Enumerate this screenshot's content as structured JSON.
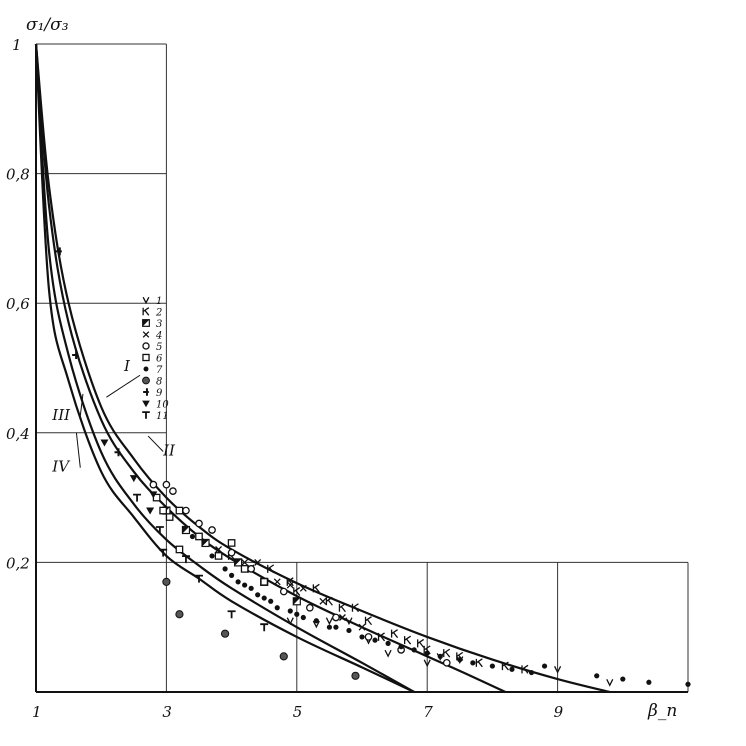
{
  "chart_data": {
    "type": "scatter",
    "title": "",
    "xlabel": "β_п",
    "ylabel": "σ₁/σ₃",
    "xlim": [
      1,
      11
    ],
    "ylim": [
      0,
      1
    ],
    "x_ticks": [
      {
        "value": 1,
        "label": "1"
      },
      {
        "value": 3,
        "label": "3"
      },
      {
        "value": 5,
        "label": "5"
      },
      {
        "value": 7,
        "label": "7"
      },
      {
        "value": 9,
        "label": "9"
      }
    ],
    "y_ticks": [
      {
        "value": 0.2,
        "label": "0,2"
      },
      {
        "value": 0.4,
        "label": "0,4"
      },
      {
        "value": 0.6,
        "label": "0,6"
      },
      {
        "value": 0.8,
        "label": "0,8"
      },
      {
        "value": 1.0,
        "label": "1"
      }
    ],
    "grid": true,
    "curves": [
      {
        "name": "I",
        "x": [
          1.0,
          1.2,
          1.5,
          2.0,
          2.5,
          3.0,
          3.5,
          4.0,
          5.0,
          6.0,
          7.0,
          8.0,
          9.0,
          9.8
        ],
        "y": [
          1.0,
          0.78,
          0.6,
          0.44,
          0.36,
          0.3,
          0.255,
          0.22,
          0.168,
          0.125,
          0.085,
          0.05,
          0.02,
          0.0
        ]
      },
      {
        "name": "II",
        "x": [
          1.0,
          1.2,
          1.5,
          2.0,
          2.5,
          3.0,
          3.5,
          4.0,
          5.0,
          6.0,
          7.0,
          7.6,
          8.2
        ],
        "y": [
          1.0,
          0.75,
          0.57,
          0.42,
          0.34,
          0.285,
          0.24,
          0.205,
          0.148,
          0.1,
          0.055,
          0.028,
          0.0
        ]
      },
      {
        "name": "III",
        "x": [
          1.0,
          1.2,
          1.5,
          2.0,
          2.5,
          3.0,
          3.5,
          4.0,
          5.0,
          6.0,
          6.8
        ],
        "y": [
          1.0,
          0.68,
          0.52,
          0.37,
          0.29,
          0.235,
          0.195,
          0.16,
          0.1,
          0.045,
          0.0
        ]
      },
      {
        "name": "IV",
        "x": [
          1.0,
          1.2,
          1.5,
          2.0,
          2.5,
          3.0,
          3.5,
          4.0,
          5.0,
          6.0,
          6.8
        ],
        "y": [
          1.0,
          0.62,
          0.48,
          0.34,
          0.27,
          0.21,
          0.175,
          0.14,
          0.085,
          0.038,
          0.0
        ]
      }
    ],
    "curve_labels": [
      {
        "text": "I",
        "x": 2.35,
        "y": 0.495
      },
      {
        "text": "III",
        "x": 1.25,
        "y": 0.42
      },
      {
        "text": "IV",
        "x": 1.25,
        "y": 0.34
      },
      {
        "text": "II",
        "x": 2.95,
        "y": 0.365
      }
    ],
    "legend": {
      "placement": "left-center",
      "entries": [
        {
          "marker": "v",
          "label": "1"
        },
        {
          "marker": "kappa",
          "label": "2"
        },
        {
          "marker": "halfsquare",
          "label": "3"
        },
        {
          "marker": "x",
          "label": "4"
        },
        {
          "marker": "diamond",
          "label": "5"
        },
        {
          "marker": "square",
          "label": "6"
        },
        {
          "marker": "dot",
          "label": "7"
        },
        {
          "marker": "bigdot",
          "label": "8"
        },
        {
          "marker": "dash4",
          "label": "9"
        },
        {
          "marker": "tri",
          "label": "10"
        },
        {
          "marker": "T",
          "label": "11"
        }
      ]
    },
    "series": [
      {
        "marker": "v",
        "name": "1",
        "points": [
          [
            4.9,
            0.11
          ],
          [
            5.3,
            0.105
          ],
          [
            5.5,
            0.11
          ],
          [
            5.8,
            0.11
          ],
          [
            6.1,
            0.08
          ],
          [
            6.4,
            0.06
          ],
          [
            7.0,
            0.045
          ],
          [
            7.2,
            0.055
          ],
          [
            7.5,
            0.05
          ],
          [
            9.0,
            0.035
          ],
          [
            9.8,
            0.015
          ]
        ]
      },
      {
        "marker": "kappa",
        "name": "2",
        "points": [
          [
            4.0,
            0.21
          ],
          [
            4.3,
            0.19
          ],
          [
            4.6,
            0.19
          ],
          [
            4.9,
            0.17
          ],
          [
            5.0,
            0.155
          ],
          [
            5.3,
            0.16
          ],
          [
            5.5,
            0.14
          ],
          [
            5.7,
            0.13
          ],
          [
            5.9,
            0.13
          ],
          [
            6.1,
            0.11
          ],
          [
            6.3,
            0.085
          ],
          [
            6.5,
            0.09
          ],
          [
            6.7,
            0.08
          ],
          [
            6.9,
            0.075
          ],
          [
            7.0,
            0.065
          ],
          [
            7.3,
            0.06
          ],
          [
            7.5,
            0.055
          ],
          [
            7.8,
            0.045
          ],
          [
            8.2,
            0.04
          ],
          [
            8.5,
            0.035
          ]
        ]
      },
      {
        "marker": "halfsquare",
        "name": "3",
        "points": [
          [
            3.0,
            0.28
          ],
          [
            3.3,
            0.25
          ],
          [
            3.6,
            0.23
          ],
          [
            4.1,
            0.2
          ],
          [
            4.5,
            0.17
          ],
          [
            5.0,
            0.14
          ]
        ]
      },
      {
        "marker": "x",
        "name": "4",
        "points": [
          [
            3.8,
            0.22
          ],
          [
            4.0,
            0.23
          ],
          [
            4.2,
            0.2
          ],
          [
            4.4,
            0.2
          ],
          [
            4.7,
            0.17
          ],
          [
            4.9,
            0.165
          ],
          [
            5.1,
            0.16
          ],
          [
            5.4,
            0.14
          ],
          [
            5.7,
            0.115
          ],
          [
            6.0,
            0.1
          ]
        ]
      },
      {
        "marker": "diamond",
        "name": "5",
        "points": [
          [
            2.8,
            0.32
          ],
          [
            3.0,
            0.32
          ],
          [
            3.1,
            0.31
          ],
          [
            3.3,
            0.28
          ],
          [
            3.5,
            0.26
          ],
          [
            3.7,
            0.25
          ],
          [
            4.0,
            0.215
          ],
          [
            4.3,
            0.19
          ],
          [
            4.8,
            0.155
          ],
          [
            5.2,
            0.13
          ],
          [
            5.6,
            0.115
          ],
          [
            6.1,
            0.085
          ],
          [
            6.6,
            0.065
          ],
          [
            7.3,
            0.045
          ]
        ]
      },
      {
        "marker": "square",
        "name": "6",
        "points": [
          [
            2.85,
            0.3
          ],
          [
            2.95,
            0.28
          ],
          [
            3.05,
            0.27
          ],
          [
            3.2,
            0.28
          ],
          [
            3.2,
            0.22
          ],
          [
            3.5,
            0.24
          ],
          [
            3.8,
            0.21
          ],
          [
            4.0,
            0.23
          ],
          [
            4.2,
            0.19
          ],
          [
            4.5,
            0.17
          ]
        ]
      },
      {
        "marker": "dot",
        "name": "7",
        "points": [
          [
            3.4,
            0.24
          ],
          [
            3.7,
            0.21
          ],
          [
            3.9,
            0.19
          ],
          [
            4.0,
            0.18
          ],
          [
            4.1,
            0.17
          ],
          [
            4.2,
            0.165
          ],
          [
            4.3,
            0.16
          ],
          [
            4.4,
            0.15
          ],
          [
            4.5,
            0.145
          ],
          [
            4.6,
            0.14
          ],
          [
            4.7,
            0.13
          ],
          [
            4.9,
            0.125
          ],
          [
            5.0,
            0.12
          ],
          [
            5.1,
            0.115
          ],
          [
            5.3,
            0.11
          ],
          [
            5.5,
            0.1
          ],
          [
            5.6,
            0.1
          ],
          [
            5.8,
            0.095
          ],
          [
            6.0,
            0.085
          ],
          [
            6.2,
            0.08
          ],
          [
            6.4,
            0.075
          ],
          [
            6.6,
            0.07
          ],
          [
            6.8,
            0.065
          ],
          [
            7.0,
            0.06
          ],
          [
            7.2,
            0.055
          ],
          [
            7.5,
            0.05
          ],
          [
            7.7,
            0.045
          ],
          [
            8.0,
            0.04
          ],
          [
            8.3,
            0.035
          ],
          [
            8.6,
            0.03
          ],
          [
            8.8,
            0.04
          ],
          [
            9.6,
            0.025
          ],
          [
            10.0,
            0.02
          ],
          [
            10.4,
            0.015
          ],
          [
            11.0,
            0.012
          ]
        ]
      },
      {
        "marker": "bigdot",
        "name": "8",
        "points": [
          [
            3.0,
            0.17
          ],
          [
            3.2,
            0.12
          ],
          [
            3.9,
            0.09
          ],
          [
            4.8,
            0.055
          ],
          [
            5.9,
            0.025
          ]
        ]
      },
      {
        "marker": "dash4",
        "name": "9",
        "points": [
          [
            1.35,
            0.68
          ],
          [
            1.6,
            0.52
          ],
          [
            2.25,
            0.37
          ]
        ]
      },
      {
        "marker": "tri",
        "name": "10",
        "points": [
          [
            2.05,
            0.385
          ],
          [
            2.5,
            0.33
          ],
          [
            2.8,
            0.305
          ],
          [
            2.75,
            0.28
          ]
        ]
      },
      {
        "marker": "T",
        "name": "11",
        "points": [
          [
            2.55,
            0.3
          ],
          [
            2.9,
            0.25
          ],
          [
            2.95,
            0.215
          ],
          [
            3.3,
            0.205
          ],
          [
            3.5,
            0.175
          ],
          [
            4.0,
            0.12
          ],
          [
            4.5,
            0.1
          ]
        ]
      }
    ]
  }
}
